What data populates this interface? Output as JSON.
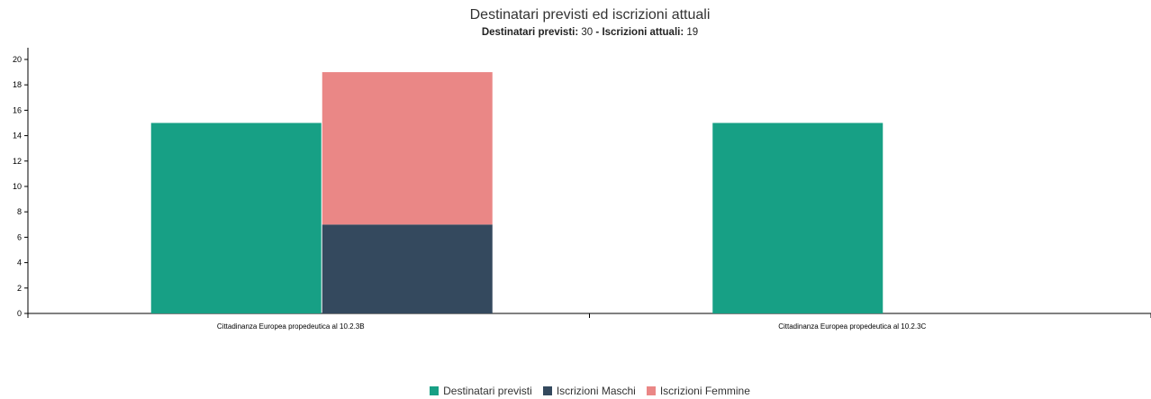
{
  "colors": {
    "destinatari": "#17a085",
    "maschi": "#34495e",
    "femmine": "#ea8786"
  },
  "chart_data": {
    "type": "bar",
    "title": "Destinatari previsti ed iscrizioni attuali",
    "subtitle": {
      "label1": "Destinatari previsti:",
      "value1": "30",
      "sep": "-",
      "label2": "Iscrizioni attuali:",
      "value2": "19"
    },
    "categories": [
      "Cittadinanza Europea propedeutica al 10.2.3B",
      "Cittadinanza Europea propedeutica al 10.2.3C"
    ],
    "series": [
      {
        "name": "Destinatari previsti",
        "values": [
          15,
          15
        ],
        "stack": "a"
      },
      {
        "name": "Iscrizioni Maschi",
        "values": [
          7,
          0
        ],
        "stack": "b"
      },
      {
        "name": "Iscrizioni Femmine",
        "values": [
          12,
          0
        ],
        "stack": "b"
      }
    ],
    "ylim": [
      0,
      20
    ],
    "yticks": [
      0,
      2,
      4,
      6,
      8,
      10,
      12,
      14,
      16,
      18,
      20
    ],
    "grid": false,
    "legend": "bottom-center"
  }
}
